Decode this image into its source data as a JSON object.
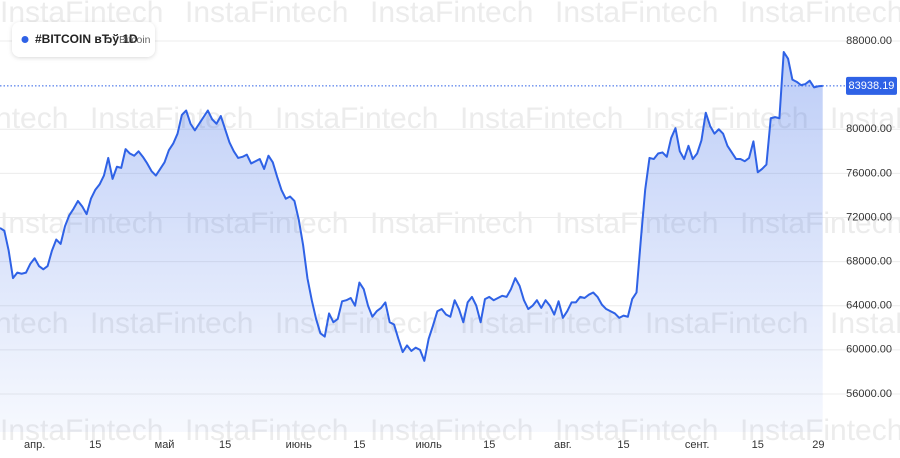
{
  "chart_data": {
    "type": "line",
    "watermark": "InstaFintech",
    "subtitle": "Bitcoin",
    "categories": [
      null,
      null,
      null,
      null,
      null,
      null,
      null,
      null,
      "апр.",
      null,
      null,
      null,
      null,
      null,
      null,
      null,
      null,
      null,
      null,
      null,
      null,
      null,
      "15",
      null,
      null,
      null,
      null,
      null,
      null,
      null,
      null,
      null,
      null,
      null,
      null,
      null,
      null,
      null,
      "май",
      null,
      null,
      null,
      null,
      null,
      null,
      null,
      null,
      null,
      null,
      null,
      null,
      null,
      "15",
      null,
      null,
      null,
      null,
      null,
      null,
      null,
      null,
      null,
      null,
      null,
      null,
      null,
      null,
      null,
      null,
      "июнь",
      null,
      null,
      null,
      null,
      null,
      null,
      null,
      null,
      null,
      null,
      null,
      null,
      null,
      "15",
      null,
      null,
      null,
      null,
      null,
      null,
      null,
      null,
      null,
      null,
      null,
      null,
      null,
      null,
      null,
      "июль",
      null,
      null,
      null,
      null,
      null,
      null,
      null,
      null,
      null,
      null,
      null,
      null,
      null,
      "15",
      null,
      null,
      null,
      null,
      null,
      null,
      null,
      null,
      null,
      null,
      null,
      null,
      null,
      null,
      null,
      null,
      "авг.",
      null,
      null,
      null,
      null,
      null,
      null,
      null,
      null,
      null,
      null,
      null,
      null,
      null,
      "15",
      null,
      null,
      null,
      null,
      null,
      null,
      null,
      null,
      null,
      null,
      null,
      null,
      null,
      null,
      null,
      null,
      "сент.",
      null,
      null,
      null,
      null,
      null,
      null,
      null,
      null,
      null,
      null,
      null,
      null,
      null,
      "15",
      null,
      null,
      null,
      null,
      null,
      null,
      null,
      null,
      null,
      null,
      null,
      null,
      null,
      "29",
      null
    ],
    "series": [
      {
        "name": "#BITCOIN вЂў 1D",
        "color": "#2f62e6",
        "values": [
          71050,
          70800,
          69000,
          66500,
          67000,
          66900,
          67000,
          67800,
          68300,
          67600,
          67300,
          67600,
          69000,
          70000,
          69600,
          71200,
          72200,
          72800,
          73500,
          73000,
          72300,
          73700,
          74500,
          75000,
          75800,
          77400,
          75500,
          76600,
          76500,
          78200,
          77800,
          77600,
          78000,
          77500,
          76900,
          76200,
          75800,
          76400,
          77000,
          78100,
          78700,
          79600,
          81300,
          81700,
          80500,
          79900,
          80500,
          81100,
          81700,
          80900,
          80500,
          81200,
          80000,
          78800,
          78000,
          77400,
          77500,
          77700,
          76900,
          77100,
          77300,
          76400,
          77600,
          77000,
          75700,
          74500,
          73700,
          73900,
          73500,
          71800,
          69500,
          66500,
          64500,
          62800,
          61500,
          61200,
          63300,
          62500,
          62800,
          64400,
          64500,
          64700,
          64000,
          66100,
          65500,
          64000,
          63000,
          63500,
          63800,
          64300,
          62500,
          62300,
          61000,
          59800,
          60400,
          59900,
          60200,
          60000,
          59000,
          61000,
          62200,
          63500,
          63700,
          63200,
          63000,
          64500,
          63700,
          62500,
          64300,
          64800,
          64000,
          62500,
          64600,
          64800,
          64500,
          64700,
          64900,
          64800,
          65500,
          66500,
          65800,
          64500,
          63700,
          64000,
          64500,
          63800,
          64500,
          64000,
          63200,
          64400,
          62900,
          63500,
          64300,
          64300,
          64800,
          64700,
          65000,
          65200,
          64800,
          64100,
          63700,
          63500,
          63300,
          62900,
          63100,
          63000,
          64600,
          65200,
          70000,
          74500,
          77400,
          77300,
          77800,
          77900,
          77500,
          79200,
          80100,
          78000,
          77300,
          78500,
          77300,
          77800,
          79000,
          81500,
          80300,
          79600,
          80000,
          79600,
          78500,
          77900,
          77300,
          77300,
          77100,
          77400,
          78900,
          76100,
          76400,
          76800,
          81000,
          81100,
          81000,
          87000,
          86400,
          84500,
          84300,
          84000,
          84100,
          84400,
          83800,
          83900,
          83938.19
        ]
      }
    ],
    "ylim": [
      52550,
      91720
    ],
    "yticks": [
      {
        "value": 56000,
        "label": "56000.00"
      },
      {
        "value": 60000,
        "label": "60000.00"
      },
      {
        "value": 64000,
        "label": "64000.00"
      },
      {
        "value": 68000,
        "label": "68000.00"
      },
      {
        "value": 72000,
        "label": "72000.00"
      },
      {
        "value": 76000,
        "label": "76000.00"
      },
      {
        "value": 80000,
        "label": "80000.00"
      },
      {
        "value": 88000,
        "label": "88000.00"
      }
    ],
    "grid": true
  }
}
